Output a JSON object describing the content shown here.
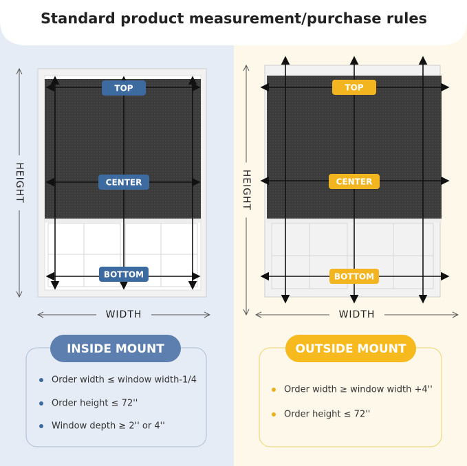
{
  "header": {
    "title": "Standard product measurement/purchase rules"
  },
  "panels": [
    {
      "height_label": "HEIGHT",
      "width_label": "WIDTH",
      "points": [
        "TOP",
        "CENTER",
        "BOTTOM"
      ],
      "mount": "INSIDE MOUNT",
      "rules": [
        "Order width ≤ window width-1/4",
        "Order height ≤ 72''",
        "Window depth ≥ 2'' or 4''"
      ]
    },
    {
      "height_label": "HEIGHT",
      "width_label": "WIDTH",
      "points": [
        "TOP",
        "CENTER",
        "BOTTOM"
      ],
      "mount": "OUTSIDE MOUNT",
      "rules": [
        "Order width ≥ window width +4''",
        "Order height ≤ 72''"
      ]
    }
  ]
}
